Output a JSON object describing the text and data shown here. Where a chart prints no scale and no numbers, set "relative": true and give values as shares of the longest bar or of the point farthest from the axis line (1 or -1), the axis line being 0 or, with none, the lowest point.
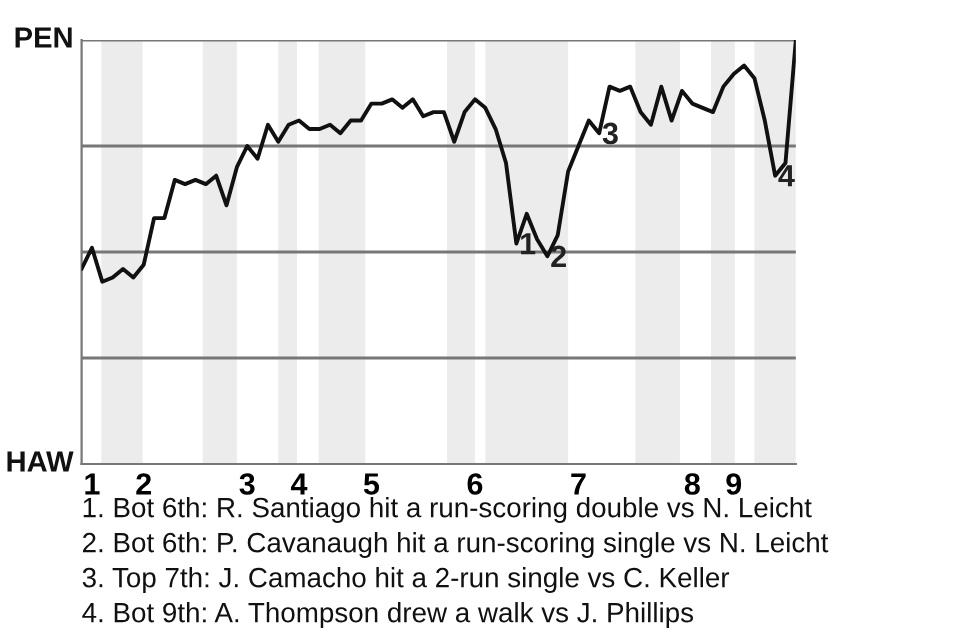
{
  "chart_data": {
    "type": "line",
    "color": "#111111",
    "line_style": "solid",
    "marker": "none",
    "relative": true,
    "categories": [
      null,
      "1",
      null,
      null,
      null,
      null,
      "2",
      null,
      null,
      null,
      null,
      null,
      null,
      null,
      null,
      null,
      "3",
      null,
      null,
      null,
      null,
      "4",
      null,
      null,
      null,
      null,
      null,
      null,
      "5",
      null,
      null,
      null,
      null,
      null,
      null,
      null,
      null,
      null,
      "6",
      null,
      null,
      null,
      null,
      null,
      null,
      null,
      null,
      null,
      "7",
      null,
      null,
      null,
      null,
      null,
      null,
      null,
      null,
      null,
      null,
      "8",
      null,
      null,
      null,
      "9",
      null,
      null,
      null,
      null,
      null,
      null
    ],
    "values": [
      0.46,
      0.51,
      0.43,
      0.44,
      0.46,
      0.44,
      0.47,
      0.58,
      0.58,
      0.67,
      0.66,
      0.67,
      0.66,
      0.68,
      0.61,
      0.7,
      0.75,
      0.72,
      0.8,
      0.76,
      0.8,
      0.81,
      0.79,
      0.79,
      0.8,
      0.78,
      0.81,
      0.81,
      0.85,
      0.85,
      0.86,
      0.84,
      0.86,
      0.82,
      0.83,
      0.83,
      0.76,
      0.83,
      0.86,
      0.84,
      0.79,
      0.71,
      0.52,
      0.59,
      0.53,
      0.49,
      0.54,
      0.69,
      0.75,
      0.81,
      0.78,
      0.89,
      0.88,
      0.89,
      0.83,
      0.8,
      0.89,
      0.81,
      0.88,
      0.85,
      0.84,
      0.83,
      0.89,
      0.92,
      0.94,
      0.91,
      0.81,
      0.68,
      0.71,
      1.0
    ],
    "ref_lines": [
      {
        "axis": "y",
        "value": 0.25,
        "color": "#777777"
      },
      {
        "axis": "y",
        "value": 0.5,
        "color": "#777777"
      },
      {
        "axis": "y",
        "value": 0.75,
        "color": "#777777"
      },
      {
        "axis": "y",
        "value": 1.0,
        "color": "#777777"
      }
    ],
    "annotations": [
      {
        "text": "1",
        "y": 0.52
      },
      {
        "text": "2",
        "y": 0.49
      },
      {
        "text": "3",
        "y": 0.78
      },
      {
        "text": "4",
        "y": 0.68
      },
      "PEN",
      "HAW",
      "1. Bot 6th: R. Santiago hit a run-scoring double vs N. Leicht",
      "2. Bot 6th: P. Cavanaugh hit a run-scoring single vs N. Leicht",
      "3. Top 7th: J. Camacho hit a 2-run single vs C. Keller",
      "4. Bot 9th: A. Thompson drew a walk vs J. Phillips"
    ]
  }
}
